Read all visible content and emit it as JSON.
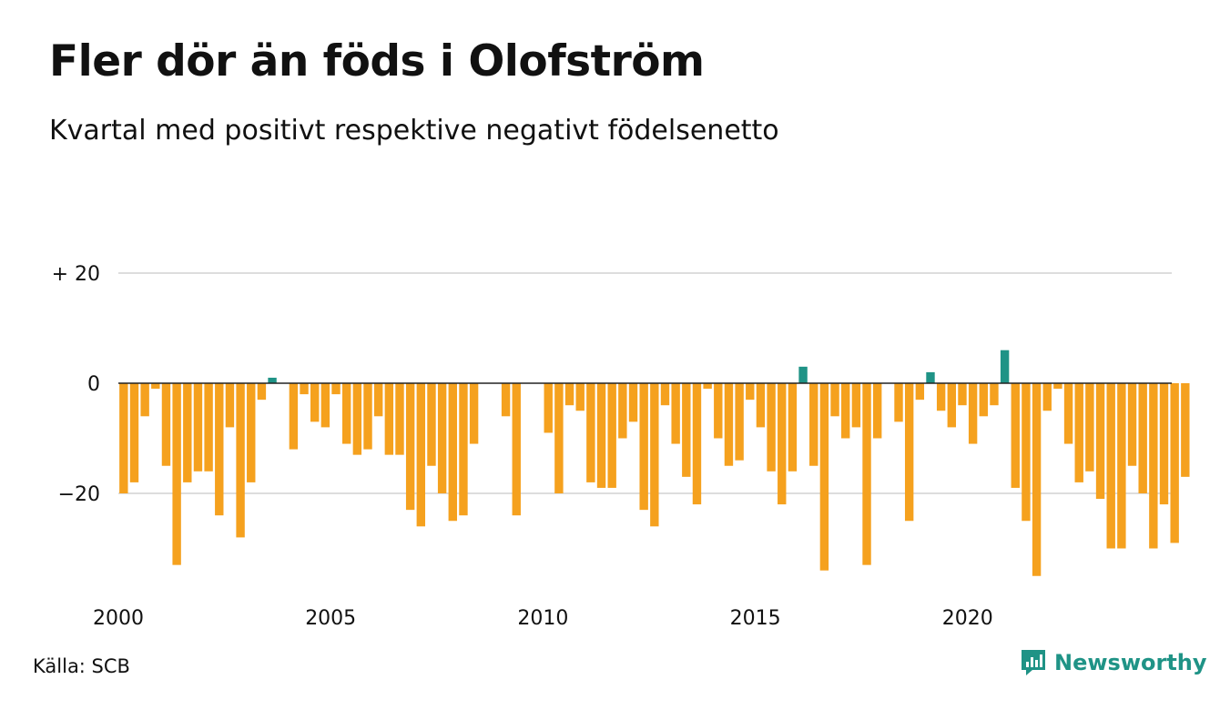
{
  "header": {
    "title": "Fler dör än föds i Olofström",
    "subtitle": "Kvartal med positivt respektive negativt födelsenetto"
  },
  "footer": {
    "source": "Källa: SCB",
    "brand": "Newsworthy"
  },
  "colors": {
    "negative": "#f5a11e",
    "positive": "#1f9386",
    "grid": "#dddddd",
    "zero_line": "#222222",
    "brand": "#1f9386"
  },
  "chart_data": {
    "type": "bar",
    "title": "Fler dör än föds i Olofström",
    "subtitle": "Kvartal med positivt respektive negativt födelsenetto",
    "x_start": "2000-Q1",
    "x_tick_labels": [
      "2000",
      "2005",
      "2010",
      "2015",
      "2020"
    ],
    "y_tick_labels": [
      "+ 20",
      "0",
      "−20"
    ],
    "y_ticks": [
      20,
      0,
      -20
    ],
    "ylim": [
      -36,
      20
    ],
    "grid": true,
    "values": [
      -20,
      -18,
      -6,
      -1,
      -15,
      -33,
      -18,
      -16,
      -16,
      -24,
      -8,
      -28,
      -18,
      -3,
      1,
      0,
      -12,
      -2,
      -7,
      -8,
      -2,
      -11,
      -13,
      -12,
      -6,
      -13,
      -13,
      -23,
      -26,
      -15,
      -20,
      -25,
      -24,
      -11,
      0,
      0,
      -6,
      -24,
      0,
      0,
      -9,
      -20,
      -4,
      -5,
      -18,
      -19,
      -19,
      -10,
      -7,
      -23,
      -26,
      -4,
      -11,
      -17,
      -22,
      -1,
      -10,
      -15,
      -14,
      -3,
      -8,
      -16,
      -22,
      -16,
      3,
      -15,
      -34,
      -6,
      -10,
      -8,
      -33,
      -10,
      0,
      -7,
      -25,
      -3,
      2,
      -5,
      -8,
      -4,
      -11,
      -6,
      -4,
      6,
      -19,
      -25,
      -35,
      -5,
      -1,
      -11,
      -18,
      -16,
      -21,
      -30,
      -30,
      -15,
      -20,
      -30,
      -22,
      -29,
      -17
    ]
  }
}
